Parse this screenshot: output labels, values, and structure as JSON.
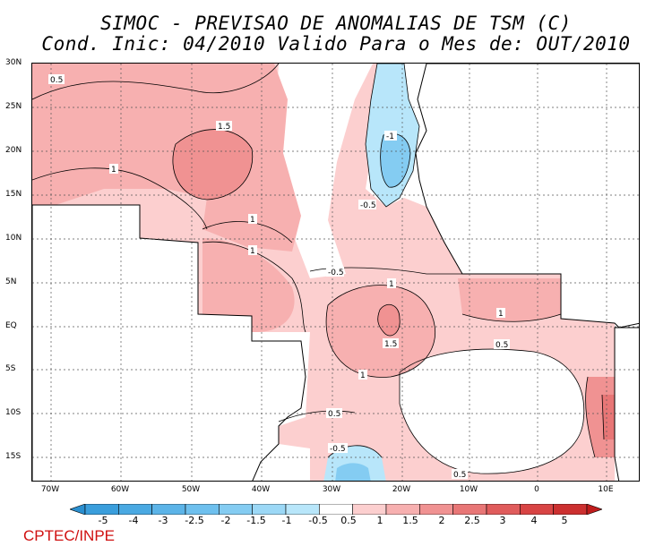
{
  "title_line1": "SIMOC - PREVISAO DE ANOMALIAS DE TSM (C)",
  "title_line2": "Cond. Inic: 04/2010   Valido Para o Mes de: OUT/2010",
  "lat_labels": [
    "30N",
    "25N",
    "20N",
    "15N",
    "10N",
    "5N",
    "EQ",
    "5S",
    "10S",
    "15S"
  ],
  "lon_labels": [
    "70W",
    "60W",
    "50W",
    "40W",
    "30W",
    "20W",
    "10W",
    "0",
    "10E"
  ],
  "contour_labels": [
    "0.5",
    "1.5",
    "1",
    "1",
    "1",
    "-1",
    "-0.5",
    "-0.5",
    "1",
    "1.5",
    "0.5",
    "1",
    "0.5",
    "1",
    "0.5",
    "-0.5"
  ],
  "colorbar": {
    "ticks": [
      "-5",
      "-4",
      "-3",
      "-2.5",
      "-2",
      "-1.5",
      "-1",
      "-0.5",
      "0.5",
      "1",
      "1.5",
      "2",
      "2.5",
      "3",
      "4",
      "5"
    ],
    "colors": [
      "#2a8fd0",
      "#3a9edc",
      "#4aa9e2",
      "#5cb4e8",
      "#6ec0ee",
      "#84ccf2",
      "#9cd8f6",
      "#b8e6fa",
      "#ffffff",
      "#fccfcf",
      "#f7b0b0",
      "#f09292",
      "#e87676",
      "#e05c5c",
      "#d84444",
      "#cc3030",
      "#c01c1c"
    ]
  },
  "footer": "CPTEC/INPE"
}
